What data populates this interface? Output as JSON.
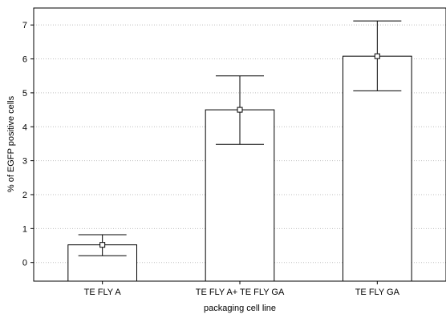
{
  "chart_data": {
    "type": "bar",
    "title": "",
    "xlabel": "packaging cell line",
    "ylabel": "% of EGFP positive cells",
    "categories": [
      "TE FLY A",
      "TE FLY A+ TE FLY GA",
      "TE FLY GA"
    ],
    "values": [
      0.52,
      4.5,
      6.08
    ],
    "error_upper": [
      0.82,
      5.5,
      7.12
    ],
    "error_lower": [
      0.2,
      3.48,
      5.06
    ],
    "ylim": [
      -0.55,
      7.5
    ],
    "yticks": [
      "0",
      "1",
      "2",
      "3",
      "4",
      "5",
      "6",
      "7"
    ],
    "grid": true,
    "colors": {
      "bar_fill": "#ffffff",
      "bar_stroke": "#000000",
      "grid": "#bfbfbf",
      "marker_fill": "#ffffff"
    }
  }
}
